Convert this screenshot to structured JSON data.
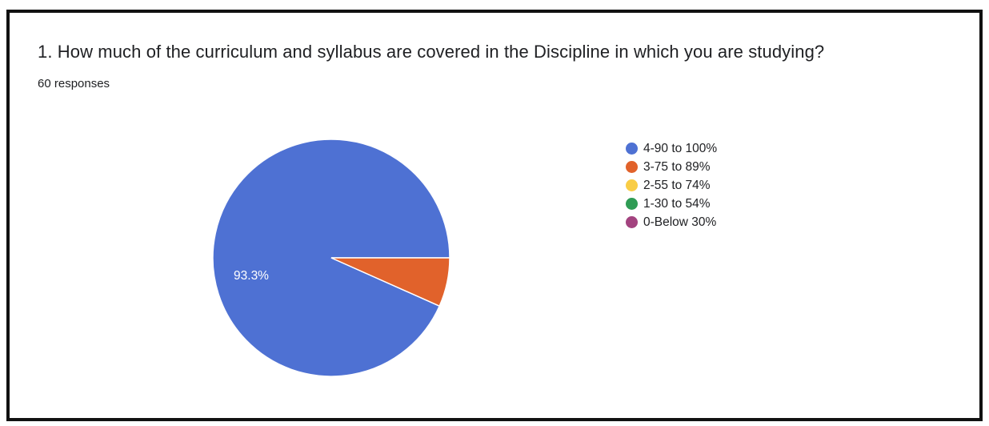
{
  "card": {
    "question": "1. How much of the curriculum and syllabus are covered in the Discipline in which you are studying?",
    "responses": "60 responses"
  },
  "chart_data": {
    "type": "pie",
    "categories": [
      "4-90 to 100%",
      "3-75 to 89%",
      "2-55 to 74%",
      "1-30 to 54%",
      "0-Below 30%"
    ],
    "values": [
      56,
      4,
      0,
      0,
      0
    ],
    "percent_labels": [
      "93.3%",
      "",
      "",
      "",
      ""
    ],
    "colors": [
      "#4e71d3",
      "#e1622b",
      "#f9cd46",
      "#2f9c55",
      "#a3437f"
    ],
    "legend_position": "right"
  }
}
